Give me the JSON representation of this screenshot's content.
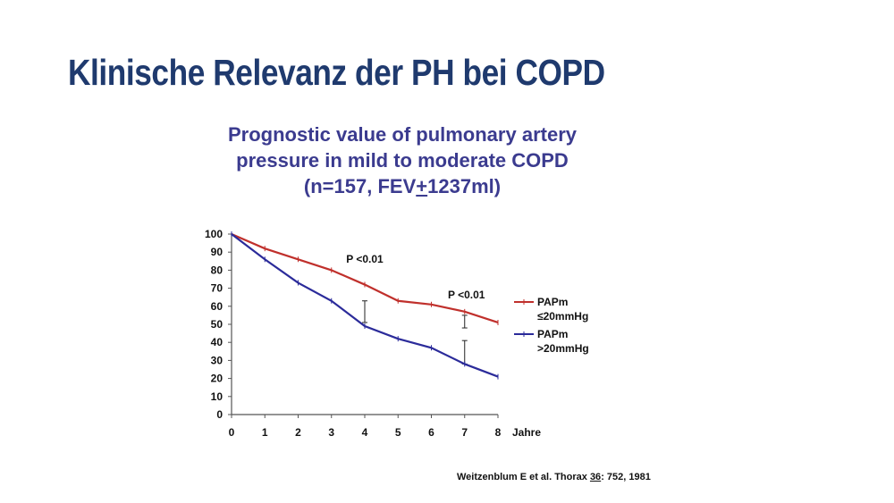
{
  "slide": {
    "title": "Klinische Relevanz der PH bei COPD"
  },
  "chart_title": {
    "line1": "Prognostic value of pulmonary artery",
    "line2": "pressure in mild to moderate COPD",
    "line3_a": "(n=157, FEV",
    "line3_b": "+",
    "line3_c": "1237ml)"
  },
  "colors": {
    "title": "#1f3a6e",
    "chart_title": "#3b3b8f",
    "series_low": "#c0302c",
    "series_high": "#2b2b9a"
  },
  "chart_data": {
    "type": "line",
    "xlabel": "Jahre",
    "ylabel": "",
    "x": [
      0,
      1,
      2,
      3,
      4,
      5,
      6,
      7,
      8
    ],
    "xlim": [
      0,
      8
    ],
    "ylim": [
      0,
      100
    ],
    "y_ticks": [
      0,
      10,
      20,
      30,
      40,
      50,
      60,
      70,
      80,
      90,
      100
    ],
    "x_ticks": [
      0,
      1,
      2,
      3,
      4,
      5,
      6,
      7,
      8
    ],
    "grid": false,
    "legend_position": "right",
    "series": [
      {
        "name": "PAPm ≤20mmHg",
        "legend_line1": "PAPm",
        "legend_line2": "≤20mmHg",
        "color": "#c0302c",
        "values": [
          100,
          92,
          86,
          80,
          72,
          63,
          61,
          57,
          51
        ]
      },
      {
        "name": "PAPm >20mmHg",
        "legend_line1": "PAPm",
        "legend_line2": ">20mmHg",
        "color": "#2b2b9a",
        "values": [
          100,
          86,
          73,
          63,
          49,
          42,
          37,
          28,
          21
        ]
      }
    ],
    "annotations": [
      {
        "text": "P <0.01",
        "x": 4
      },
      {
        "text": "P <0.01",
        "x": 7
      }
    ],
    "error_bars": [
      {
        "x": 4,
        "low": 51,
        "high": 63
      },
      {
        "x": 7,
        "low": 28,
        "high": 41
      },
      {
        "x": 7,
        "low": 48,
        "high": 55
      }
    ]
  },
  "citation": {
    "prefix": "Weitzenblum E et al. Thorax ",
    "volume": "36",
    "suffix": ": 752, 1981"
  }
}
